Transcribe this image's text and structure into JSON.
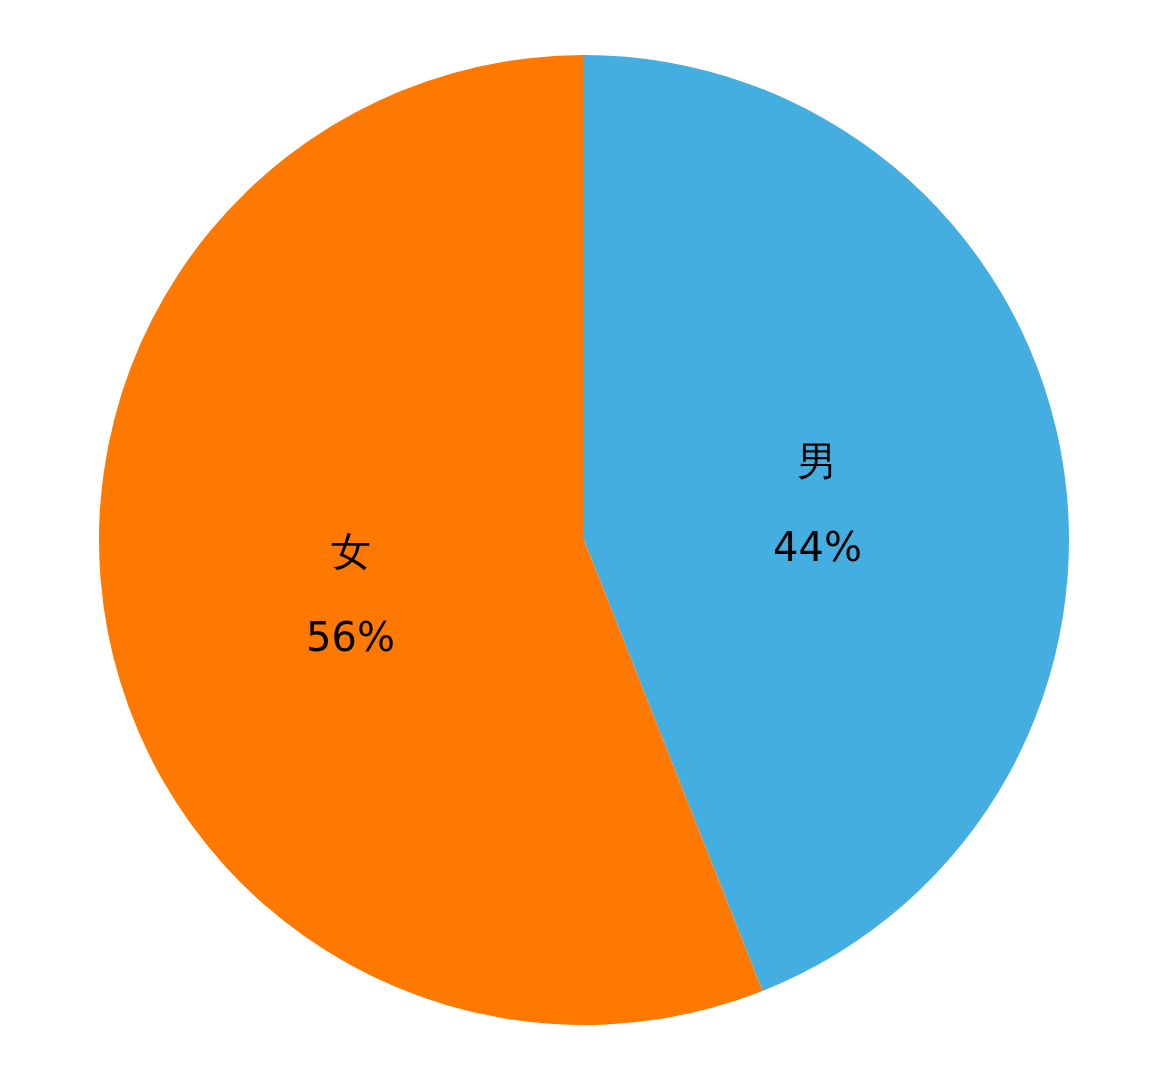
{
  "chart_data": {
    "type": "pie",
    "categories": [
      "男",
      "女"
    ],
    "values": [
      44,
      56
    ],
    "colors": [
      "#45aee0",
      "#ff7800"
    ],
    "value_labels": [
      "44%",
      "56%"
    ]
  }
}
